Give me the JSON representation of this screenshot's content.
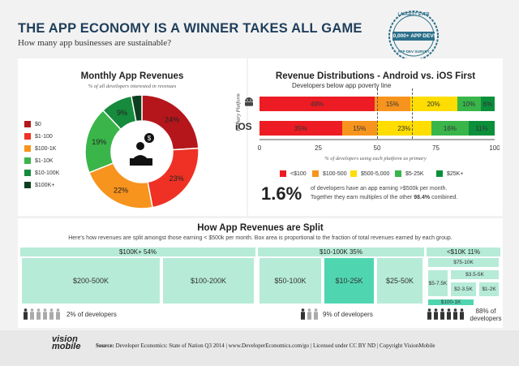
{
  "header": {
    "title": "THE APP ECONOMY IS A WINNER TAKES ALL GAME",
    "subtitle": "How many app businesses are sustainable?",
    "seal_top": "LARGEST EVER",
    "seal_main": "10,000+ APP DEVS",
    "seal_bottom": "APP DEV SURVEY"
  },
  "monthly_revenues": {
    "title": "Monthly App Revenues",
    "note": "% of all developers interested in revenues",
    "chart_data": {
      "type": "pie",
      "categories": [
        "$0",
        "$1-100",
        "$100-1K",
        "$1-10K",
        "$10-100K",
        "$100K+"
      ],
      "values": [
        24,
        23,
        22,
        19,
        9,
        3
      ],
      "labels": [
        "24%",
        "23%",
        "22%",
        "19%",
        "9%",
        ""
      ],
      "colors": [
        "#b5161b",
        "#ee3124",
        "#f7941d",
        "#3ab54a",
        "#168a3d",
        "#0d3f1f"
      ]
    }
  },
  "revenue_distribution": {
    "title": "Revenue Distributions - Android vs. iOS First",
    "poverty_label": "Developers below app poverty line",
    "primary_platform_label": "Primary Platform",
    "x_note": "% of developers using each platform as primary",
    "chart_data": {
      "type": "bar",
      "stacked": true,
      "orientation": "horizontal",
      "categories": [
        "Android",
        "iOS"
      ],
      "xlim": [
        0,
        100
      ],
      "xticks": [
        "0",
        "25",
        "50",
        "75",
        "100"
      ],
      "series": [
        {
          "name": "<$100",
          "color": "#ed1c24",
          "values": [
            49,
            35
          ],
          "labels": [
            "49%",
            "35%"
          ]
        },
        {
          "name": "$100-500",
          "color": "#f7941d",
          "values": [
            15,
            15
          ],
          "labels": [
            "15%",
            "15%"
          ]
        },
        {
          "name": "$500-5,000",
          "color": "#ffdd00",
          "values": [
            20,
            23
          ],
          "labels": [
            "20%",
            "23%"
          ]
        },
        {
          "name": "$5-25K",
          "color": "#39b54a",
          "values": [
            10,
            16
          ],
          "labels": [
            "10%",
            "16%"
          ]
        },
        {
          "name": "$25K+",
          "color": "#0b8f3b",
          "values": [
            6,
            11
          ],
          "labels": [
            "6%",
            "11%"
          ]
        }
      ]
    },
    "ios_label": "iOS",
    "stat_value": "1.6%",
    "stat_text_1": "of developers have an app earning >$500k per month.",
    "stat_text_2": "Together they earn multiples of the other",
    "stat_text_bold": "98.4%",
    "stat_text_3": "combined."
  },
  "treemap": {
    "title": "How App Revenues are Split",
    "note": "Here's how revenues are split amongst those earning < $500k per month. Box area is proportional to the fraction of total revenues earned by each group.",
    "groups": [
      {
        "label": "$100K+  54%",
        "blocks": [
          "$200-500K",
          "$100-200K"
        ],
        "devs": "2% of developers"
      },
      {
        "label": "$10-100K  35%",
        "blocks": [
          "$50-100K",
          "$10-25K",
          "$25-50K"
        ],
        "devs": "9% of developers"
      },
      {
        "label": "<$10K  11%",
        "blocks": [
          "$75-10K",
          "$3.5-5K",
          "$5-7.5K",
          "$2-3.5K",
          "$1-2K",
          "$100-1K"
        ],
        "devs_1": "88% of",
        "devs_2": "developers"
      }
    ],
    "accent_color": "#b6ebd8",
    "highlight_color": "#4fd6b0"
  },
  "footer": {
    "logo_1": "vision",
    "logo_2": "mobile",
    "source_label": "Source:",
    "source_text": "Developer Economics: State of Nation Q3 2014 | www.DeveloperEconomics.com/go   |   Licensed under CC BY ND | Copyright VisionMobile"
  }
}
